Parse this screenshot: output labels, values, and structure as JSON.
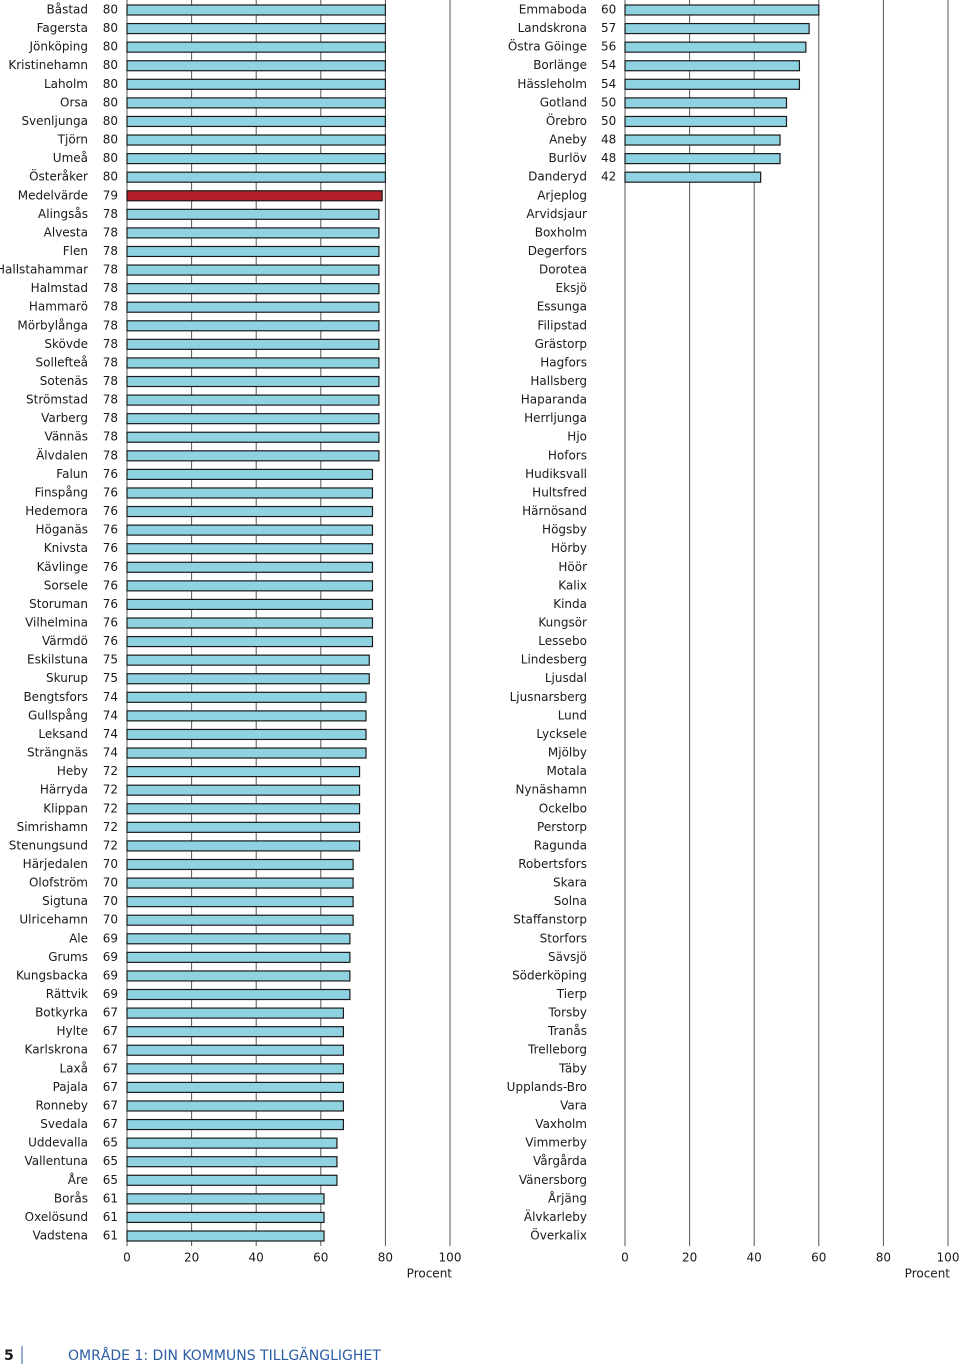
{
  "chart_data": [
    {
      "type": "bar",
      "orientation": "horizontal",
      "xlabel": "Procent",
      "xlim": [
        0,
        100
      ],
      "xticks": [
        0,
        20,
        40,
        60,
        80,
        100
      ],
      "grid": true,
      "color": "#8fd3e3",
      "highlight": {
        "index": 10,
        "color": "#b3202a"
      },
      "categories": [
        "Båstad",
        "Fagersta",
        "Jönköping",
        "Kristinehamn",
        "Laholm",
        "Orsa",
        "Svenljunga",
        "Tjörn",
        "Umeå",
        "Österåker",
        "Medelvärde",
        "Alingsås",
        "Alvesta",
        "Flen",
        "Hallstahammar",
        "Halmstad",
        "Hammarö",
        "Mörbylånga",
        "Skövde",
        "Sollefteå",
        "Sotenäs",
        "Strömstad",
        "Varberg",
        "Vännäs",
        "Älvdalen",
        "Falun",
        "Finspång",
        "Hedemora",
        "Höganäs",
        "Knivsta",
        "Kävlinge",
        "Sorsele",
        "Storuman",
        "Vilhelmina",
        "Värmdö",
        "Eskilstuna",
        "Skurup",
        "Bengtsfors",
        "Gullspång",
        "Leksand",
        "Strängnäs",
        "Heby",
        "Härryda",
        "Klippan",
        "Simrishamn",
        "Stenungsund",
        "Härjedalen",
        "Olofström",
        "Sigtuna",
        "Ulricehamn",
        "Ale",
        "Grums",
        "Kungsbacka",
        "Rättvik",
        "Botkyrka",
        "Hylte",
        "Karlskrona",
        "Laxå",
        "Pajala",
        "Ronneby",
        "Svedala",
        "Uddevalla",
        "Vallentuna",
        "Åre",
        "Borås",
        "Oxelösund",
        "Vadstena"
      ],
      "values": [
        80,
        80,
        80,
        80,
        80,
        80,
        80,
        80,
        80,
        80,
        79,
        78,
        78,
        78,
        78,
        78,
        78,
        78,
        78,
        78,
        78,
        78,
        78,
        78,
        78,
        76,
        76,
        76,
        76,
        76,
        76,
        76,
        76,
        76,
        76,
        75,
        75,
        74,
        74,
        74,
        74,
        72,
        72,
        72,
        72,
        72,
        70,
        70,
        70,
        70,
        69,
        69,
        69,
        69,
        67,
        67,
        67,
        67,
        67,
        67,
        67,
        65,
        65,
        65,
        61,
        61,
        61
      ]
    },
    {
      "type": "bar",
      "orientation": "horizontal",
      "xlabel": "Procent",
      "xlim": [
        0,
        100
      ],
      "xticks": [
        0,
        20,
        40,
        60,
        80,
        100
      ],
      "grid": true,
      "color": "#8fd3e3",
      "categories": [
        "Emmaboda",
        "Landskrona",
        "Östra Göinge",
        "Borlänge",
        "Hässleholm",
        "Gotland",
        "Örebro",
        "Aneby",
        "Burlöv",
        "Danderyd",
        "Arjeplog",
        "Arvidsjaur",
        "Boxholm",
        "Degerfors",
        "Dorotea",
        "Eksjö",
        "Essunga",
        "Filipstad",
        "Grästorp",
        "Hagfors",
        "Hallsberg",
        "Haparanda",
        "Herrljunga",
        "Hjo",
        "Hofors",
        "Hudiksvall",
        "Hultsfred",
        "Härnösand",
        "Högsby",
        "Hörby",
        "Höör",
        "Kalix",
        "Kinda",
        "Kungsör",
        "Lessebo",
        "Lindesberg",
        "Ljusdal",
        "Ljusnarsberg",
        "Lund",
        "Lycksele",
        "Mjölby",
        "Motala",
        "Nynäshamn",
        "Ockelbo",
        "Perstorp",
        "Ragunda",
        "Robertsfors",
        "Skara",
        "Solna",
        "Staffanstorp",
        "Storfors",
        "Sävsjö",
        "Söderköping",
        "Tierp",
        "Torsby",
        "Tranås",
        "Trelleborg",
        "Täby",
        "Upplands-Bro",
        "Vara",
        "Vaxholm",
        "Vimmerby",
        "Vårgårda",
        "Vänersborg",
        "Årjäng",
        "Älvkarleby",
        "Överkalix"
      ],
      "values": [
        60,
        57,
        56,
        54,
        54,
        50,
        50,
        48,
        48,
        42,
        null,
        null,
        null,
        null,
        null,
        null,
        null,
        null,
        null,
        null,
        null,
        null,
        null,
        null,
        null,
        null,
        null,
        null,
        null,
        null,
        null,
        null,
        null,
        null,
        null,
        null,
        null,
        null,
        null,
        null,
        null,
        null,
        null,
        null,
        null,
        null,
        null,
        null,
        null,
        null,
        null,
        null,
        null,
        null,
        null,
        null,
        null,
        null,
        null,
        null,
        null,
        null,
        null,
        null,
        null,
        null,
        null
      ]
    }
  ],
  "footer": {
    "page_number": "5",
    "section": "OMRÅDE 1: DIN KOMMUNS TILLGÄNGLIGHET"
  }
}
